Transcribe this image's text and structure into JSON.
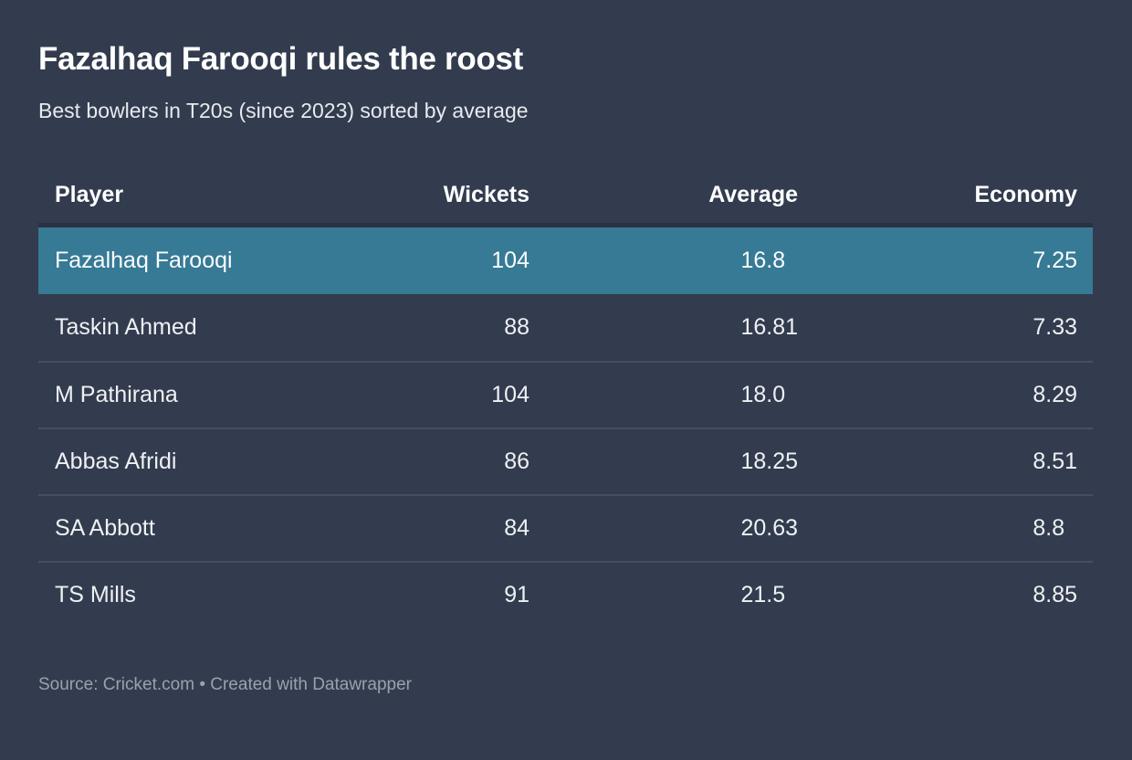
{
  "header": {
    "title": "Fazalhaq Farooqi rules the roost",
    "subtitle": "Best bowlers in T20s (since 2023) sorted by average"
  },
  "table": {
    "columns": [
      {
        "label": "Player"
      },
      {
        "label": "Wickets"
      },
      {
        "label": "Average"
      },
      {
        "label": "Economy"
      }
    ],
    "rows": [
      {
        "player": "Fazalhaq Farooqi",
        "wickets": "104",
        "average": "16.8",
        "economy": "7.25",
        "highlighted": true
      },
      {
        "player": "Taskin Ahmed",
        "wickets": "88",
        "average": "16.81",
        "economy": "7.33"
      },
      {
        "player": "M Pathirana",
        "wickets": "104",
        "average": "18.0",
        "economy": "8.29"
      },
      {
        "player": "Abbas Afridi",
        "wickets": "86",
        "average": "18.25",
        "economy": "8.51"
      },
      {
        "player": "SA Abbott",
        "wickets": "84",
        "average": "20.63",
        "economy": "8.8"
      },
      {
        "player": "TS Mills",
        "wickets": "91",
        "average": "21.5",
        "economy": "8.85"
      }
    ]
  },
  "footer": {
    "text": "Source: Cricket.com • Created with Datawrapper"
  },
  "colors": {
    "background": "#333C4E",
    "row_highlight": "#377A95",
    "divider": "#454F63",
    "header_separator": "#2A3140",
    "text_primary": "#FFFFFF",
    "text_body": "#EEF1F4",
    "text_muted": "#9AA1AC"
  },
  "chart_data": {
    "type": "table",
    "title": "Fazalhaq Farooqi rules the roost",
    "subtitle": "Best bowlers in T20s (since 2023) sorted by average",
    "columns": [
      "Player",
      "Wickets",
      "Average",
      "Economy"
    ],
    "rows": [
      [
        "Fazalhaq Farooqi",
        104,
        16.8,
        7.25
      ],
      [
        "Taskin Ahmed",
        88,
        16.81,
        7.33
      ],
      [
        "M Pathirana",
        104,
        18.0,
        8.29
      ],
      [
        "Abbas Afridi",
        86,
        18.25,
        8.51
      ],
      [
        "SA Abbott",
        84,
        20.63,
        8.8
      ],
      [
        "TS Mills",
        91,
        21.5,
        8.85
      ]
    ],
    "highlighted_row": "Fazalhaq Farooqi",
    "sorted_by": "average",
    "source": "Cricket.com",
    "attribution": "Created with Datawrapper"
  }
}
